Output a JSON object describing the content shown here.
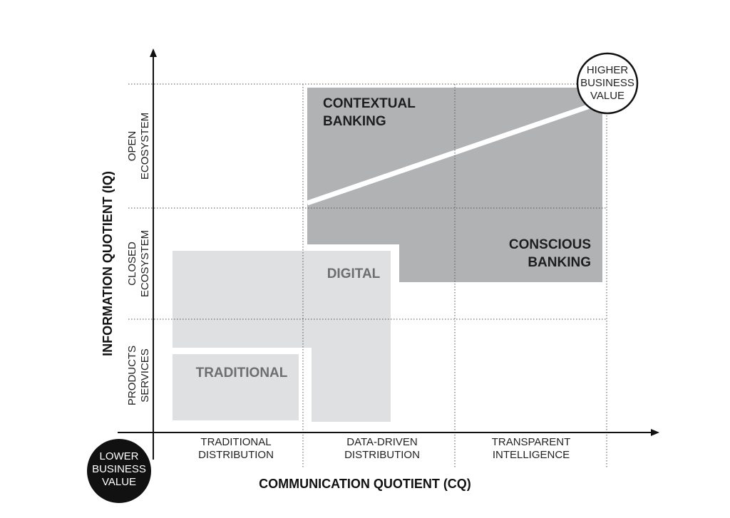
{
  "axes": {
    "y_title": "INFORMATION QUOTIENT (IQ)",
    "x_title": "COMMUNICATION QUOTIENT (CQ)"
  },
  "rows": [
    [
      "OPEN",
      "ECOSYSTEM"
    ],
    [
      "CLOSED",
      "ECOSYSTEM"
    ],
    [
      "PRODUCTS",
      "SERVICES"
    ]
  ],
  "columns": [
    [
      "TRADITIONAL",
      "DISTRIBUTION"
    ],
    [
      "DATA-DRIVEN",
      "DISTRIBUTION"
    ],
    [
      "TRANSPARENT",
      "INTELLIGENCE"
    ]
  ],
  "regions": {
    "contextual": [
      "CONTEXTUAL",
      "BANKING"
    ],
    "conscious": [
      "CONSCIOUS",
      "BANKING"
    ],
    "digital": "DIGITAL",
    "traditional": "TRADITIONAL"
  },
  "higher": [
    "HIGHER",
    "BUSINESS",
    "VALUE"
  ],
  "lower": [
    "LOWER",
    "BUSINESS",
    "VALUE"
  ]
}
